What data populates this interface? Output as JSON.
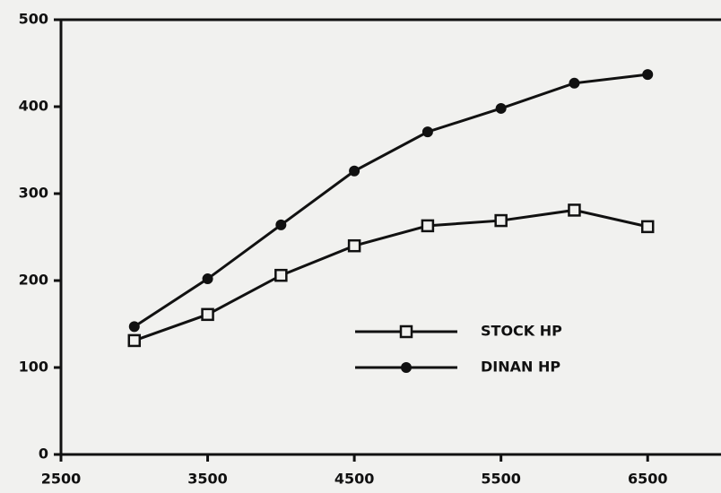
{
  "chart_data": {
    "type": "line",
    "x": [
      3000,
      3500,
      4000,
      4500,
      5000,
      5500,
      6000,
      6500
    ],
    "series": [
      {
        "name": "STOCK HP",
        "color": "#111111",
        "marker": "square",
        "values": [
          131,
          161,
          206,
          240,
          263,
          269,
          281,
          262
        ]
      },
      {
        "name": "DINAN HP",
        "color": "#111111",
        "marker": "circle",
        "values": [
          147,
          202,
          264,
          326,
          371,
          398,
          427,
          437
        ]
      }
    ],
    "xlim": [
      2500,
      7000
    ],
    "xticks": [
      2500,
      3500,
      4500,
      5500,
      6500
    ],
    "ylim": [
      0,
      500
    ],
    "yticks": [
      0,
      100,
      200,
      300,
      400,
      500
    ],
    "grid": false
  }
}
